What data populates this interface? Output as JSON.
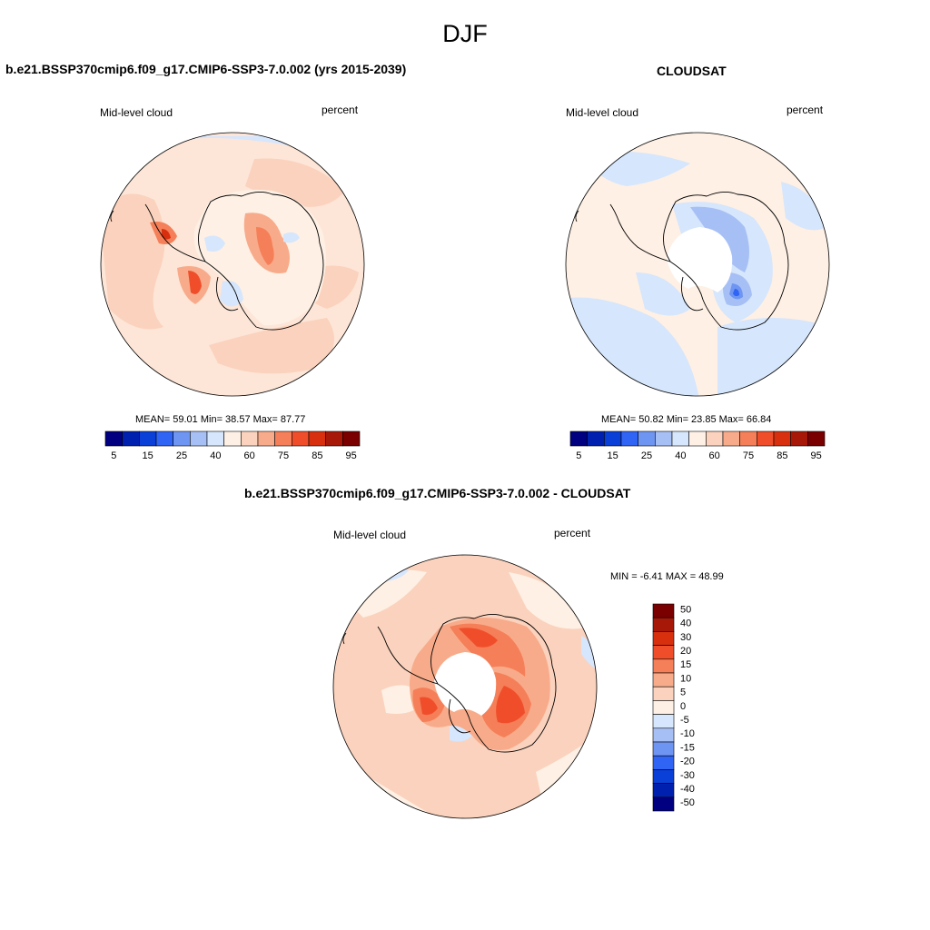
{
  "figure": {
    "title": "DJF"
  },
  "panel1": {
    "title": "b.e21.BSSP370cmip6.f09_g17.CMIP6-SSP3-7.0.002 (yrs 2015-2039)",
    "left_label": "Mid-level cloud",
    "right_label": "percent",
    "stats": "MEAN=  59.01  Min=  38.57  Max=  87.77"
  },
  "panel2": {
    "title": "CLOUDSAT",
    "left_label": "Mid-level cloud",
    "right_label": "percent",
    "stats": "MEAN=  50.82  Min=  23.85  Max=  66.84"
  },
  "panel3": {
    "title": "b.e21.BSSP370cmip6.f09_g17.CMIP6-SSP3-7.0.002 - CLOUDSAT",
    "left_label": "Mid-level cloud",
    "right_label": "percent",
    "stats": "MIN =  -6.41 MAX =  48.99"
  },
  "abs_colorbar": {
    "colors": [
      "#000080",
      "#0020b0",
      "#0a3fd8",
      "#2f64f5",
      "#6f95f2",
      "#a6c0f5",
      "#d6e6fc",
      "#fef0e4",
      "#fbd2bd",
      "#f8ab8a",
      "#f57f58",
      "#f04e2a",
      "#d8300f",
      "#a81808",
      "#7a0000"
    ],
    "labels": [
      "5",
      "15",
      "25",
      "40",
      "60",
      "75",
      "85",
      "95"
    ]
  },
  "diff_colorbar": {
    "colors": [
      "#7a0000",
      "#a81808",
      "#d8300f",
      "#f04e2a",
      "#f57f58",
      "#f8ab8a",
      "#fbd2bd",
      "#fef0e4",
      "#d6e6fc",
      "#a6c0f5",
      "#6f95f2",
      "#2f64f5",
      "#0a3fd8",
      "#0020b0",
      "#000080"
    ],
    "labels": [
      "50",
      "40",
      "30",
      "20",
      "15",
      "10",
      "5",
      "0",
      "-5",
      "-10",
      "-15",
      "-20",
      "-30",
      "-40",
      "-50"
    ]
  }
}
